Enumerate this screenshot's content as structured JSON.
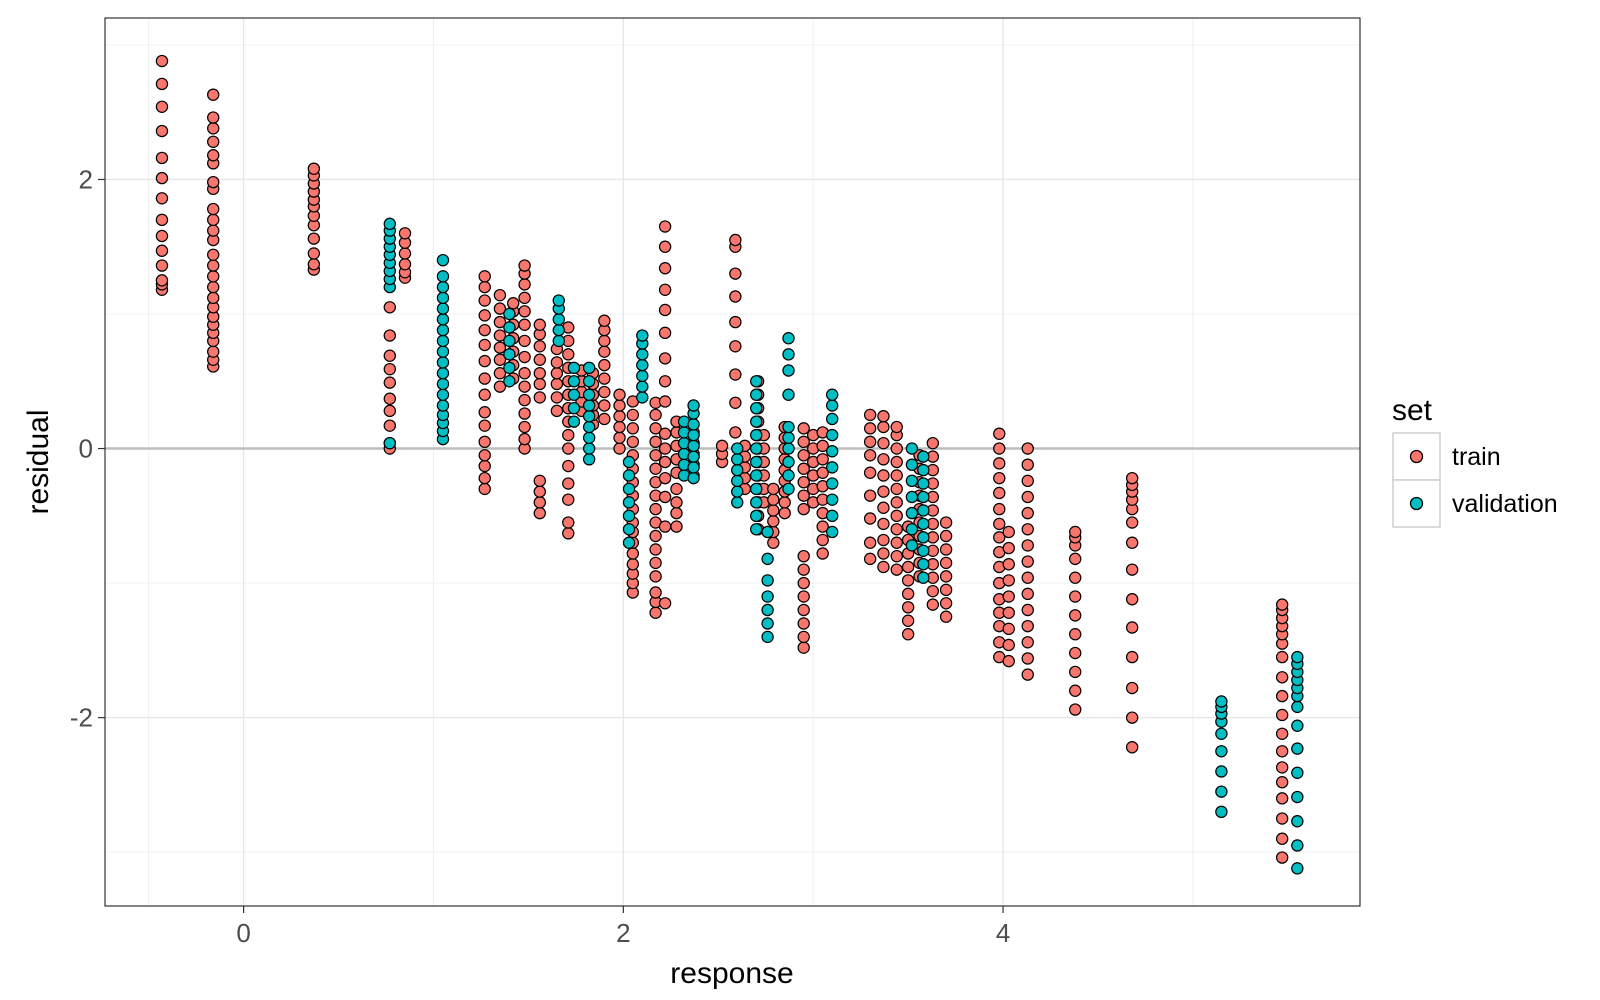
{
  "chart_data": {
    "type": "scatter",
    "title": "",
    "xlabel": "response",
    "ylabel": "residual",
    "xlim": [
      -0.73,
      5.88
    ],
    "ylim": [
      -3.4,
      3.2
    ],
    "xticks": [
      0,
      2,
      4
    ],
    "xtick_labels": [
      "0",
      "2",
      "4"
    ],
    "yticks": [
      -2,
      0,
      2
    ],
    "ytick_labels": [
      "-2",
      "0",
      "2"
    ],
    "x_minor": [
      -0.5,
      1,
      3,
      5
    ],
    "y_minor": [
      -3,
      -1,
      1,
      3
    ],
    "grid": true,
    "reference_line_y": 0,
    "legend": {
      "title": "set",
      "position": "right"
    },
    "series": [
      {
        "name": "train",
        "color": "#F8766D",
        "columns": [
          {
            "x": -0.43,
            "y": [
              1.18,
              1.22,
              1.25,
              1.36,
              1.47,
              1.58,
              1.7,
              1.86,
              2.01,
              2.16,
              2.36,
              2.54,
              2.71,
              2.88
            ]
          },
          {
            "x": -0.16,
            "y": [
              0.61,
              0.66,
              0.72,
              0.8,
              0.86,
              0.92,
              0.98,
              1.05,
              1.12,
              1.2,
              1.28,
              1.36,
              1.44,
              1.55,
              1.62,
              1.7,
              1.78,
              1.93,
              1.98,
              2.12,
              2.18,
              2.28,
              2.38,
              2.46,
              2.63
            ]
          },
          {
            "x": 0.37,
            "y": [
              1.33,
              1.37,
              1.45,
              1.56,
              1.66,
              1.73,
              1.8,
              1.85,
              1.91,
              1.97,
              2.03,
              2.08
            ]
          },
          {
            "x": 0.77,
            "y": [
              0.0,
              0.04,
              0.17,
              0.28,
              0.37,
              0.49,
              0.59,
              0.69,
              0.84,
              1.05
            ]
          },
          {
            "x": 0.85,
            "y": [
              1.27,
              1.31,
              1.37,
              1.45,
              1.53,
              1.6
            ]
          },
          {
            "x": 1.27,
            "y": [
              -0.3,
              -0.22,
              -0.13,
              -0.05,
              0.05,
              0.17,
              0.27,
              0.4,
              0.52,
              0.65,
              0.77,
              0.88,
              0.99,
              1.1,
              1.2,
              1.28
            ]
          },
          {
            "x": 1.35,
            "y": [
              0.46,
              0.56,
              0.66,
              0.75,
              0.84,
              0.94,
              1.04,
              1.14
            ]
          },
          {
            "x": 1.42,
            "y": [
              0.52,
              0.62,
              0.72,
              0.82,
              0.92,
              1.02,
              1.08
            ]
          },
          {
            "x": 1.48,
            "y": [
              0.0,
              0.07,
              0.16,
              0.26,
              0.36,
              0.46,
              0.56,
              0.68,
              0.8,
              0.92,
              1.02,
              1.12,
              1.22,
              1.3,
              1.36
            ]
          },
          {
            "x": 1.56,
            "y": [
              -0.48,
              -0.4,
              -0.32,
              -0.24,
              0.38,
              0.48,
              0.56,
              0.66,
              0.76,
              0.85,
              0.92
            ]
          },
          {
            "x": 1.65,
            "y": [
              0.28,
              0.38,
              0.48,
              0.56,
              0.64,
              0.74
            ]
          },
          {
            "x": 1.71,
            "y": [
              -0.63,
              -0.55,
              -0.38,
              -0.26,
              -0.13,
              0.0,
              0.1,
              0.2,
              0.3,
              0.4,
              0.5,
              0.6,
              0.7,
              0.8,
              0.9
            ]
          },
          {
            "x": 1.78,
            "y": [
              0.28,
              0.35,
              0.42,
              0.5,
              0.58
            ]
          },
          {
            "x": 1.84,
            "y": [
              0.18,
              0.25,
              0.32,
              0.4,
              0.48,
              0.56
            ]
          },
          {
            "x": 1.9,
            "y": [
              0.22,
              0.32,
              0.42,
              0.52,
              0.62,
              0.72,
              0.8,
              0.88,
              0.95
            ]
          },
          {
            "x": 1.98,
            "y": [
              0.0,
              0.08,
              0.16,
              0.24,
              0.32,
              0.4
            ]
          },
          {
            "x": 2.05,
            "y": [
              -1.07,
              -1.0,
              -0.93,
              -0.86,
              -0.78,
              -0.7,
              -0.62,
              -0.55,
              -0.45,
              -0.35,
              -0.25,
              -0.15,
              -0.05,
              0.05,
              0.15,
              0.25,
              0.35
            ]
          },
          {
            "x": 2.17,
            "y": [
              -1.22,
              -1.14,
              -1.07,
              -0.95,
              -0.85,
              -0.75,
              -0.65,
              -0.55,
              -0.45,
              -0.35,
              -0.25,
              -0.15,
              -0.05,
              0.05,
              0.15,
              0.25,
              0.34
            ]
          },
          {
            "x": 2.22,
            "y": [
              -1.15,
              -0.58,
              -0.36,
              -0.22,
              -0.1,
              0.0,
              0.11,
              0.35,
              0.5,
              0.67,
              0.86,
              1.03,
              1.18,
              1.34,
              1.5,
              1.65
            ]
          },
          {
            "x": 2.28,
            "y": [
              -0.58,
              -0.48,
              -0.4,
              -0.3,
              -0.18,
              -0.08,
              0.02,
              0.12,
              0.2
            ]
          },
          {
            "x": 2.37,
            "y": [
              -0.2,
              -0.12,
              -0.04,
              0.04,
              0.12
            ]
          },
          {
            "x": 2.52,
            "y": [
              -0.1,
              -0.04,
              0.02
            ]
          },
          {
            "x": 2.59,
            "y": [
              0.12,
              0.34,
              0.55,
              0.76,
              0.94,
              1.13,
              1.3,
              1.5,
              1.55
            ]
          },
          {
            "x": 2.64,
            "y": [
              -0.3,
              -0.22,
              -0.14,
              -0.06,
              0.02
            ]
          },
          {
            "x": 2.71,
            "y": [
              -0.6,
              -0.5,
              -0.4,
              -0.3,
              -0.2,
              -0.1,
              0.0,
              0.1,
              0.2,
              0.3,
              0.4,
              0.5
            ]
          },
          {
            "x": 2.74,
            "y": [
              -0.4,
              -0.3,
              -0.2,
              -0.1,
              0.0,
              0.1
            ]
          },
          {
            "x": 2.79,
            "y": [
              -0.7,
              -0.62,
              -0.54,
              -0.46,
              -0.38,
              -0.3
            ]
          },
          {
            "x": 2.85,
            "y": [
              -0.48,
              -0.4,
              -0.32,
              -0.24,
              -0.16,
              -0.08,
              0.0,
              0.08,
              0.16
            ]
          },
          {
            "x": 2.95,
            "y": [
              -1.48,
              -1.4,
              -1.3,
              -1.2,
              -1.1,
              -1.0,
              -0.9,
              -0.8,
              -0.45,
              -0.35,
              -0.25,
              -0.15,
              -0.05,
              0.05,
              0.15
            ]
          },
          {
            "x": 3.0,
            "y": [
              -0.4,
              -0.3,
              -0.2,
              -0.1,
              0.0,
              0.1
            ]
          },
          {
            "x": 3.05,
            "y": [
              -0.78,
              -0.68,
              -0.58,
              -0.48,
              -0.38,
              -0.28,
              -0.18,
              -0.08,
              0.02,
              0.12
            ]
          },
          {
            "x": 3.3,
            "y": [
              -0.82,
              -0.7,
              -0.52,
              -0.35,
              -0.18,
              -0.05,
              0.05,
              0.15,
              0.25
            ]
          },
          {
            "x": 3.37,
            "y": [
              -0.88,
              -0.78,
              -0.68,
              -0.56,
              -0.44,
              -0.32,
              -0.2,
              -0.08,
              0.04,
              0.16,
              0.24
            ]
          },
          {
            "x": 3.44,
            "y": [
              -0.9,
              -0.8,
              -0.7,
              -0.6,
              -0.5,
              -0.4,
              -0.3,
              -0.2,
              -0.1,
              0.0,
              0.1,
              0.16
            ]
          },
          {
            "x": 3.5,
            "y": [
              -1.38,
              -1.28,
              -1.18,
              -1.08,
              -0.98,
              -0.88,
              -0.78,
              -0.68,
              -0.58
            ]
          },
          {
            "x": 3.56,
            "y": [
              -0.95,
              -0.85,
              -0.75,
              -0.65,
              -0.55,
              -0.45,
              -0.35,
              -0.25,
              -0.15,
              -0.05
            ]
          },
          {
            "x": 3.63,
            "y": [
              -1.16,
              -1.06,
              -0.96,
              -0.86,
              -0.76,
              -0.66,
              -0.56,
              -0.46,
              -0.36,
              -0.26,
              -0.16,
              -0.06,
              0.04
            ]
          },
          {
            "x": 3.7,
            "y": [
              -1.25,
              -1.15,
              -1.05,
              -0.95,
              -0.85,
              -0.75,
              -0.65,
              -0.55
            ]
          },
          {
            "x": 3.98,
            "y": [
              -1.55,
              -1.44,
              -1.32,
              -1.22,
              -1.12,
              -1.0,
              -0.88,
              -0.77,
              -0.66,
              -0.56,
              -0.45,
              -0.33,
              -0.22,
              -0.11,
              0.0,
              0.11
            ]
          },
          {
            "x": 4.03,
            "y": [
              -1.58,
              -1.46,
              -1.34,
              -1.22,
              -1.1,
              -0.98,
              -0.86,
              -0.74,
              -0.62
            ]
          },
          {
            "x": 4.13,
            "y": [
              -1.68,
              -1.56,
              -1.44,
              -1.32,
              -1.2,
              -1.08,
              -0.96,
              -0.84,
              -0.72,
              -0.6,
              -0.48,
              -0.36,
              -0.24,
              -0.12,
              0.0
            ]
          },
          {
            "x": 4.38,
            "y": [
              -1.94,
              -1.8,
              -1.66,
              -1.52,
              -1.38,
              -1.24,
              -1.1,
              -0.96,
              -0.82,
              -0.72,
              -0.66,
              -0.62
            ]
          },
          {
            "x": 4.68,
            "y": [
              -2.22,
              -2.0,
              -1.78,
              -1.55,
              -1.33,
              -1.12,
              -0.9,
              -0.7,
              -0.55,
              -0.45,
              -0.38,
              -0.32,
              -0.27,
              -0.22
            ]
          },
          {
            "x": 5.47,
            "y": [
              -3.04,
              -2.9,
              -2.75,
              -2.6,
              -2.48,
              -2.37,
              -2.25,
              -2.12,
              -1.98,
              -1.84,
              -1.7,
              -1.55,
              -1.45,
              -1.38,
              -1.32,
              -1.26,
              -1.2,
              -1.16
            ]
          }
        ]
      },
      {
        "name": "validation",
        "color": "#00BFC4",
        "columns": [
          {
            "x": 0.77,
            "y": [
              0.04,
              1.2,
              1.26,
              1.32,
              1.38,
              1.44,
              1.5,
              1.56,
              1.62,
              1.67
            ]
          },
          {
            "x": 1.05,
            "y": [
              0.07,
              0.13,
              0.19,
              0.25,
              0.32,
              0.4,
              0.48,
              0.56,
              0.64,
              0.72,
              0.8,
              0.88,
              0.96,
              1.04,
              1.12,
              1.2,
              1.28,
              1.4
            ]
          },
          {
            "x": 1.4,
            "y": [
              0.5,
              0.6,
              0.7,
              0.8,
              0.9,
              1.0
            ]
          },
          {
            "x": 1.66,
            "y": [
              0.8,
              0.88,
              0.96,
              1.04,
              1.1
            ]
          },
          {
            "x": 1.74,
            "y": [
              0.2,
              0.3,
              0.4,
              0.5,
              0.6
            ]
          },
          {
            "x": 1.82,
            "y": [
              -0.08,
              0.0,
              0.08,
              0.16,
              0.24,
              0.32,
              0.4,
              0.5,
              0.6
            ]
          },
          {
            "x": 2.03,
            "y": [
              -0.7,
              -0.6,
              -0.5,
              -0.4,
              -0.3,
              -0.2,
              -0.1
            ]
          },
          {
            "x": 2.1,
            "y": [
              0.38,
              0.46,
              0.54,
              0.62,
              0.7,
              0.78,
              0.84
            ]
          },
          {
            "x": 2.32,
            "y": [
              -0.2,
              -0.12,
              -0.04,
              0.04,
              0.12,
              0.2
            ]
          },
          {
            "x": 2.37,
            "y": [
              -0.22,
              -0.14,
              -0.06,
              0.02,
              0.1,
              0.18,
              0.26,
              0.32
            ]
          },
          {
            "x": 2.6,
            "y": [
              -0.4,
              -0.32,
              -0.24,
              -0.16,
              -0.08,
              0.0
            ]
          },
          {
            "x": 2.7,
            "y": [
              -0.6,
              -0.5,
              -0.4,
              -0.3,
              -0.2,
              -0.1,
              0.0,
              0.1,
              0.2,
              0.3,
              0.4,
              0.5
            ]
          },
          {
            "x": 2.76,
            "y": [
              -1.4,
              -1.3,
              -1.2,
              -1.1,
              -0.98,
              -0.82,
              -0.62
            ]
          },
          {
            "x": 2.87,
            "y": [
              -0.3,
              -0.2,
              -0.1,
              0.0,
              0.08,
              0.16,
              0.4,
              0.58,
              0.7,
              0.82
            ]
          },
          {
            "x": 3.1,
            "y": [
              -0.62,
              -0.5,
              -0.38,
              -0.26,
              -0.14,
              -0.02,
              0.1,
              0.22,
              0.32,
              0.4
            ]
          },
          {
            "x": 3.52,
            "y": [
              -0.72,
              -0.6,
              -0.48,
              -0.36,
              -0.24,
              -0.12,
              0.0
            ]
          },
          {
            "x": 3.58,
            "y": [
              -0.96,
              -0.86,
              -0.76,
              -0.66,
              -0.56,
              -0.46,
              -0.36,
              -0.26,
              -0.16,
              -0.06
            ]
          },
          {
            "x": 5.15,
            "y": [
              -2.7,
              -2.55,
              -2.4,
              -2.25,
              -2.12,
              -2.03,
              -1.97,
              -1.92,
              -1.88
            ]
          },
          {
            "x": 5.55,
            "y": [
              -3.12,
              -2.95,
              -2.77,
              -2.59,
              -2.41,
              -2.23,
              -2.06,
              -1.92,
              -1.84,
              -1.78,
              -1.72,
              -1.66,
              -1.6,
              -1.55
            ]
          }
        ]
      }
    ]
  }
}
